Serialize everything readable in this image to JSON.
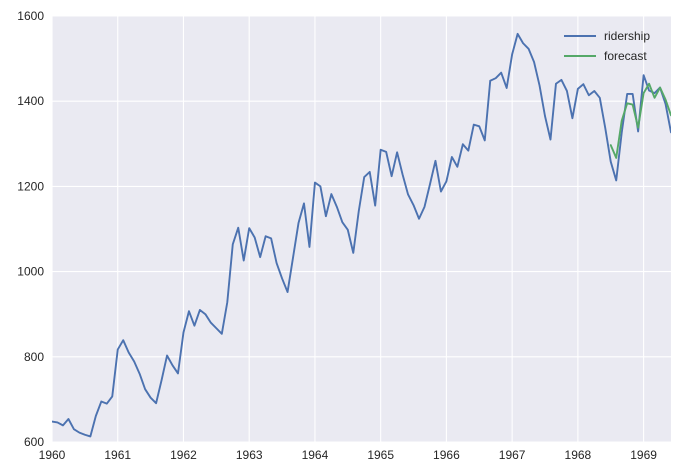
{
  "chart_data": {
    "type": "line",
    "title": "",
    "xlabel": "",
    "ylabel": "",
    "xlim": [
      1960.0,
      1969.4167
    ],
    "ylim": [
      600,
      1600
    ],
    "x_tick_labels": [
      "1960",
      "1961",
      "1962",
      "1963",
      "1964",
      "1965",
      "1966",
      "1967",
      "1968",
      "1969"
    ],
    "y_tick_labels": [
      "600",
      "800",
      "1000",
      "1200",
      "1400",
      "1600"
    ],
    "grid": true,
    "legend_position": "top-right",
    "background": "#EAEAF2",
    "series": [
      {
        "name": "ridership",
        "color": "#4C72B0",
        "start": "1960-01",
        "frequency": "monthly",
        "values": [
          648,
          646,
          639,
          654,
          630,
          622,
          617,
          613,
          661,
          695,
          690,
          707,
          817,
          839,
          810,
          789,
          760,
          724,
          704,
          691,
          745,
          803,
          780,
          761,
          857,
          907,
          873,
          910,
          900,
          880,
          867,
          854,
          928,
          1064,
          1103,
          1026,
          1102,
          1080,
          1034,
          1083,
          1078,
          1020,
          984,
          952,
          1033,
          1114,
          1160,
          1058,
          1209,
          1200,
          1130,
          1182,
          1152,
          1116,
          1098,
          1044,
          1142,
          1222,
          1234,
          1155,
          1286,
          1281,
          1224,
          1280,
          1228,
          1181,
          1156,
          1124,
          1152,
          1205,
          1260,
          1188,
          1212,
          1269,
          1246,
          1299,
          1284,
          1345,
          1341,
          1308,
          1448,
          1454,
          1467,
          1431,
          1510,
          1558,
          1536,
          1523,
          1492,
          1437,
          1365,
          1310,
          1441,
          1450,
          1424,
          1360,
          1429,
          1440,
          1414,
          1424,
          1408,
          1337,
          1258,
          1214,
          1326,
          1417,
          1417,
          1329,
          1461,
          1425,
          1419,
          1432,
          1394,
          1327
        ]
      },
      {
        "name": "forecast",
        "color": "#55A868",
        "start": "1968-07",
        "frequency": "monthly",
        "values": [
          1297,
          1267,
          1354,
          1395,
          1392,
          1338,
          1419,
          1441,
          1408,
          1432,
          1404,
          1367
        ]
      }
    ]
  }
}
